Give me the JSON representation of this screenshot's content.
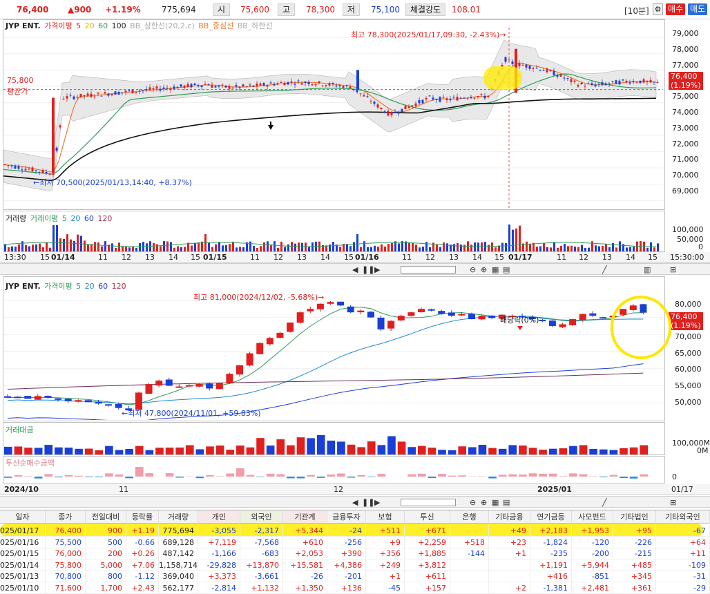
{
  "topbar": {
    "price": "76,400",
    "change": "▲900",
    "pct": "+1.19%",
    "volume": "775,694",
    "open_label": "시",
    "open": "75,600",
    "high_label": "고",
    "high": "78,300",
    "low_label": "저",
    "low": "75,100",
    "strength_label": "체결강도",
    "strength": "108.01",
    "interval": "[10분]",
    "buy": "매수",
    "sell": "매도"
  },
  "intraday": {
    "legend": {
      "name": "JYP ENT.",
      "ma_label": "가격이평",
      "ma5": "5",
      "ma20": "20",
      "ma60": "60",
      "ma100": "100",
      "bb_upper": "BB_상한선(20,2,c)",
      "bb_mid": "BB_중심선",
      "bb_lower": "BB_하한선"
    },
    "y_ticks": [
      "79,000",
      "78,000",
      "77,000",
      "76,000",
      "75,000",
      "74,000",
      "73,000",
      "72,000",
      "71,000",
      "70,000",
      "69,000"
    ],
    "high_annot": "최고 78,300(2025/01/17,09:30, -2.43%)→",
    "low_annot": "←최저 70,500(2025/01/13,14:40, +8.37%)",
    "avg_price": "75,800",
    "avg_label": "평균가",
    "tag_price": "76,400",
    "tag_pct": "(1.19%)",
    "vol_legend": {
      "vol": "거래량",
      "ma_label": "거래이평",
      "ma5": "5",
      "ma20": "20",
      "ma60": "60",
      "ma120": "120"
    },
    "vol_ticks": [
      "100,000",
      "50,000",
      "0"
    ],
    "x_labels": [
      "13:30",
      "15",
      "01/14",
      "11",
      "12",
      "13",
      "14",
      "15",
      "01/15",
      "11",
      "12",
      "13",
      "14",
      "15",
      "01/16",
      "11",
      "12",
      "13",
      "14",
      "15",
      "01/17",
      "11",
      "12",
      "13",
      "14",
      "15",
      "15:30:00"
    ],
    "chart_data": {
      "type": "candlestick",
      "ylim": [
        68500,
        79600
      ],
      "high": 78300,
      "low": 70500,
      "avg": 75800,
      "last": 76400
    }
  },
  "daily": {
    "legend": {
      "name": "JYP ENT.",
      "ma_label": "가격이평",
      "ma5": "5",
      "ma20": "20",
      "ma60": "60",
      "ma120": "120"
    },
    "y_ticks": [
      "80,000",
      "75,000",
      "70,000",
      "65,000",
      "60,000",
      "55,000",
      "50,000"
    ],
    "high_annot": "최고 81,000(2024/12/02, -5.68%)→",
    "low_annot": "←최저 47,800(2024/11/01, +59.83%)",
    "div_annot": "배당락(0%)",
    "tag_price": "76,400",
    "tag_pct": "(1.19%)",
    "amount_label": "거래대금",
    "amount_ticks": [
      "100,000M",
      "0M"
    ],
    "trust_label": "투신순매수금액",
    "trust_ticks": [
      "0"
    ],
    "x_labels": [
      "2024/10",
      "11",
      "12",
      "2025/01",
      "01/17"
    ],
    "chart_data": {
      "type": "candlestick",
      "ylim": [
        45000,
        83000
      ],
      "high": 81000,
      "low": 47800,
      "last": 76400
    }
  },
  "table": {
    "headers": [
      "일자",
      "종가",
      "전일대비",
      "등락률",
      "거래량",
      "개인",
      "외국인",
      "기관계",
      "금융투자",
      "보험",
      "투신",
      "은행",
      "기타금융",
      "연기금등",
      "사모펀드",
      "기타법인",
      "기타외국인"
    ],
    "rows": [
      [
        "025/01/17",
        "76,400",
        "900",
        "+1.19",
        "775,694",
        "-3,055",
        "-2,317",
        "+5,344",
        "-24",
        "+511",
        "+671",
        "",
        "+49",
        "+2,183",
        "+1,953",
        "+95",
        "-67"
      ],
      [
        "025/01/16",
        "75,500",
        "500",
        "-0.66",
        "689,128",
        "+7,119",
        "-7,568",
        "+610",
        "-256",
        "+9",
        "+2,259",
        "+518",
        "+23",
        "-1,824",
        "-120",
        "-226",
        "+64"
      ],
      [
        "025/01/15",
        "76,000",
        "200",
        "+0.26",
        "487,142",
        "-1,166",
        "-683",
        "+2,053",
        "+390",
        "+356",
        "+1,885",
        "-144",
        "+1",
        "-235",
        "-200",
        "-215",
        "+11"
      ],
      [
        "025/01/14",
        "75,800",
        "5,000",
        "+7.06",
        "1,158,714",
        "-29,828",
        "+13,870",
        "+15,581",
        "+4,386",
        "+249",
        "+3,812",
        "",
        "",
        "+1,191",
        "+5,944",
        "+485",
        "-109"
      ],
      [
        "025/01/13",
        "70,800",
        "800",
        "-1.12",
        "369,040",
        "+3,373",
        "-3,661",
        "-26",
        "-201",
        "+1",
        "+611",
        "",
        "",
        "+416",
        "-851",
        "+345",
        "-31"
      ],
      [
        "025/01/10",
        "71,600",
        "1,700",
        "+2.43",
        "562,177",
        "-2,814",
        "+1,132",
        "+1,350",
        "+136",
        "-45",
        "+157",
        "",
        "+2",
        "-1,381",
        "+2,481",
        "+361",
        "-29"
      ]
    ]
  },
  "colors": {
    "up": "#e0201e",
    "down": "#1a3fd6",
    "ma5": "#f07a30",
    "ma20": "#2e9a58",
    "ma60": "#111111",
    "highlight": "#ffe600"
  }
}
